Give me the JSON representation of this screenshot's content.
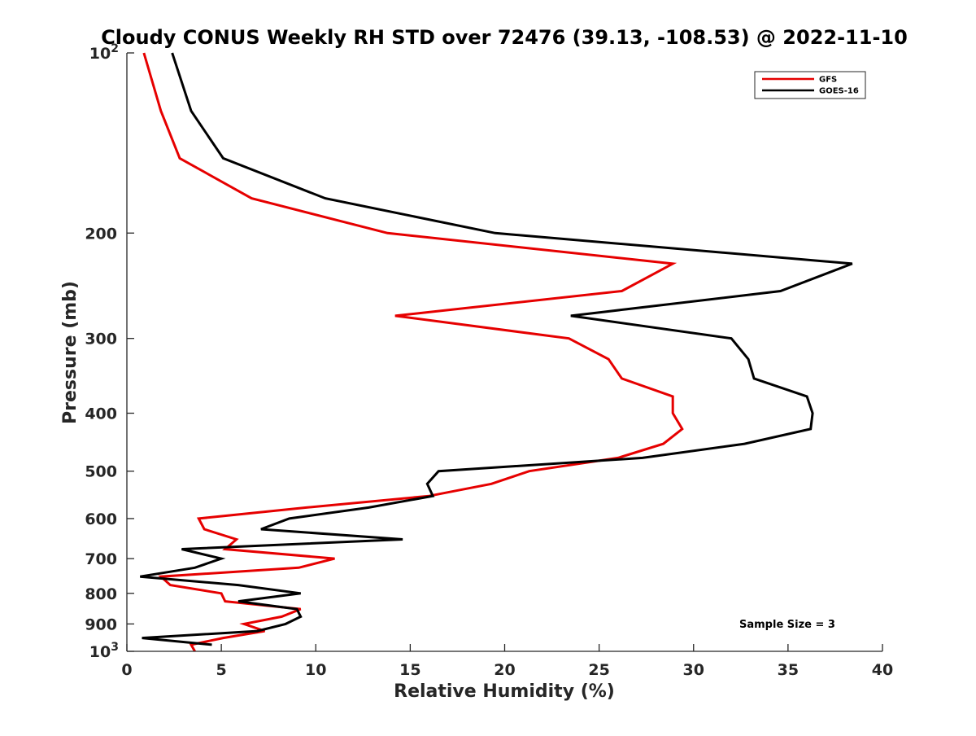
{
  "chart_data": {
    "type": "line",
    "title": "Cloudy CONUS Weekly RH STD over 72476 (39.13, -108.53) @ 2022-11-10",
    "xlabel": "Relative Humidity (%)",
    "ylabel": "Pressure (mb)",
    "xlim": [
      0,
      40
    ],
    "ylim": [
      100,
      1000
    ],
    "y_scale": "log",
    "y_reversed": true,
    "x_ticks": [
      0,
      5,
      10,
      15,
      20,
      25,
      30,
      35,
      40
    ],
    "y_ticks": [
      {
        "value": 100,
        "base": "10",
        "exp": "2"
      },
      {
        "value": 200,
        "label": "200"
      },
      {
        "value": 300,
        "label": "300"
      },
      {
        "value": 400,
        "label": "400"
      },
      {
        "value": 500,
        "label": "500"
      },
      {
        "value": 600,
        "label": "600"
      },
      {
        "value": 700,
        "label": "700"
      },
      {
        "value": 800,
        "label": "800"
      },
      {
        "value": 900,
        "label": "900"
      },
      {
        "value": 1000,
        "base": "10",
        "exp": "3"
      }
    ],
    "legend_position": "top-right",
    "grid": false,
    "annotation": "Sample Size = 3",
    "series": [
      {
        "name": "GFS",
        "color": "#e60000",
        "points": [
          [
            0.9,
            100
          ],
          [
            1.8,
            125
          ],
          [
            2.8,
            150
          ],
          [
            6.6,
            175
          ],
          [
            13.8,
            200
          ],
          [
            28.9,
            225
          ],
          [
            26.2,
            250
          ],
          [
            14.2,
            275
          ],
          [
            23.4,
            300
          ],
          [
            25.5,
            325
          ],
          [
            26.2,
            350
          ],
          [
            28.9,
            375
          ],
          [
            28.9,
            400
          ],
          [
            29.4,
            425
          ],
          [
            28.4,
            450
          ],
          [
            26.0,
            475
          ],
          [
            21.3,
            500
          ],
          [
            19.3,
            525
          ],
          [
            16.0,
            550
          ],
          [
            9.5,
            575
          ],
          [
            3.8,
            600
          ],
          [
            4.1,
            625
          ],
          [
            5.8,
            650
          ],
          [
            5.2,
            675
          ],
          [
            11.0,
            700
          ],
          [
            9.1,
            725
          ],
          [
            1.8,
            750
          ],
          [
            2.3,
            775
          ],
          [
            5.0,
            800
          ],
          [
            5.2,
            825
          ],
          [
            9.2,
            850
          ],
          [
            8.2,
            875
          ],
          [
            6.2,
            900
          ],
          [
            7.3,
            925
          ],
          [
            5.1,
            950
          ],
          [
            3.4,
            975
          ],
          [
            3.6,
            1000
          ]
        ]
      },
      {
        "name": "GOES-16",
        "color": "#000000",
        "points": [
          [
            2.4,
            100
          ],
          [
            3.4,
            125
          ],
          [
            5.1,
            150
          ],
          [
            10.5,
            175
          ],
          [
            19.5,
            200
          ],
          [
            38.4,
            225
          ],
          [
            34.6,
            250
          ],
          [
            23.5,
            275
          ],
          [
            32.0,
            300
          ],
          [
            32.9,
            325
          ],
          [
            33.2,
            350
          ],
          [
            36.0,
            375
          ],
          [
            36.3,
            400
          ],
          [
            36.2,
            425
          ],
          [
            32.7,
            450
          ],
          [
            27.3,
            475
          ],
          [
            16.5,
            500
          ],
          [
            15.9,
            525
          ],
          [
            16.2,
            550
          ],
          [
            12.8,
            575
          ],
          [
            8.6,
            600
          ],
          [
            7.1,
            625
          ],
          [
            14.6,
            650
          ],
          [
            2.9,
            675
          ],
          [
            5.0,
            700
          ],
          [
            3.6,
            725
          ],
          [
            0.7,
            750
          ],
          [
            5.9,
            775
          ],
          [
            9.2,
            800
          ],
          [
            5.9,
            825
          ],
          [
            9.0,
            850
          ],
          [
            9.2,
            875
          ],
          [
            8.4,
            900
          ],
          [
            6.9,
            925
          ],
          [
            0.8,
            950
          ],
          [
            4.5,
            975
          ]
        ]
      }
    ]
  }
}
